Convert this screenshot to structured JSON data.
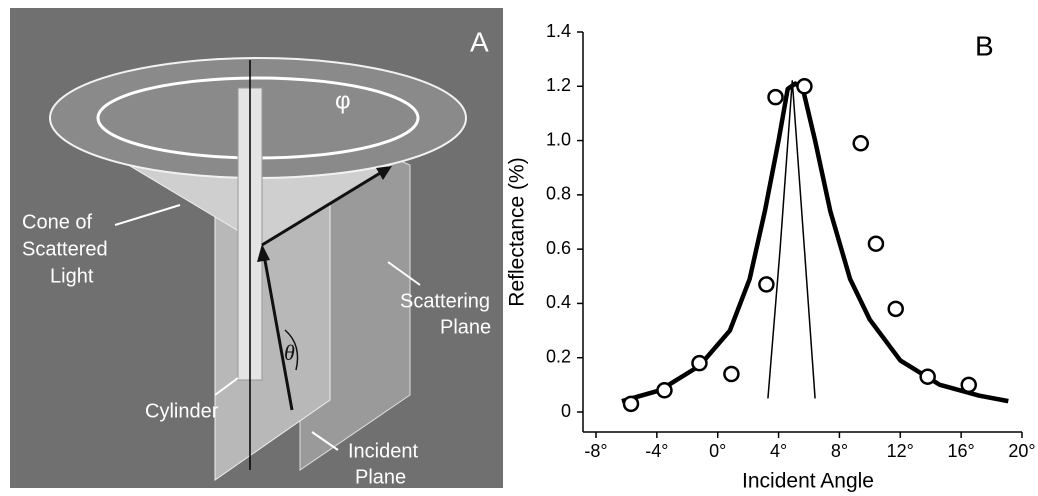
{
  "panel_a": {
    "label": "A",
    "phi": "φ",
    "cone_label": [
      "Cone of",
      "Scattered",
      "Light"
    ],
    "scattering_plane_label": [
      "Scattering",
      "Plane"
    ],
    "theta": "θ",
    "cylinder_label": "Cylinder",
    "incident_plane_label": [
      "Incident",
      "Plane"
    ]
  },
  "chart_data": {
    "type": "line",
    "panel_label": "B",
    "x_label": "Incident Angle",
    "y_label": "Reflectance (%)",
    "xlim": [
      -8,
      20
    ],
    "ylim": [
      0,
      1.4
    ],
    "xticks": [
      {
        "value": -8,
        "label": "-8°"
      },
      {
        "value": -4,
        "label": "-4°"
      },
      {
        "value": 0,
        "label": "0°"
      },
      {
        "value": 4,
        "label": "4°"
      },
      {
        "value": 8,
        "label": "8°"
      },
      {
        "value": 12,
        "label": "12°"
      },
      {
        "value": 16,
        "label": "16°"
      },
      {
        "value": 20,
        "label": "20°"
      }
    ],
    "yticks": [
      0,
      0.2,
      0.4,
      0.6,
      0.8,
      {
        "value": 1,
        "label": "1.0"
      },
      1.2,
      1.4
    ],
    "series": [
      {
        "mode": "thick-line",
        "color": "#000000",
        "x": [
          -6.3,
          -3.8,
          -1.2,
          0.8,
          2.1,
          3.1,
          4.0,
          4.6,
          5.1,
          5.6,
          6.4,
          7.4,
          8.7,
          10.0,
          12.0,
          14.6,
          17.2,
          19.1
        ],
        "values": [
          0.04,
          0.08,
          0.17,
          0.3,
          0.49,
          0.74,
          1.0,
          1.19,
          1.21,
          1.19,
          1.0,
          0.74,
          0.49,
          0.34,
          0.19,
          0.1,
          0.06,
          0.04
        ]
      },
      {
        "mode": "thin-line",
        "color": "#000000",
        "x": [
          3.3,
          4.1,
          4.9,
          5.7,
          6.4
        ],
        "values": [
          0.05,
          0.6,
          1.22,
          0.6,
          0.05
        ]
      },
      {
        "mode": "markers",
        "color": "#000000",
        "x": [
          -5.7,
          -3.5,
          -1.2,
          0.9,
          3.2,
          3.8,
          5.7,
          9.4,
          10.4,
          11.7,
          13.8,
          16.5
        ],
        "values": [
          0.03,
          0.08,
          0.18,
          0.14,
          0.47,
          1.16,
          1.2,
          0.99,
          0.62,
          0.38,
          0.13,
          0.1
        ]
      }
    ]
  }
}
